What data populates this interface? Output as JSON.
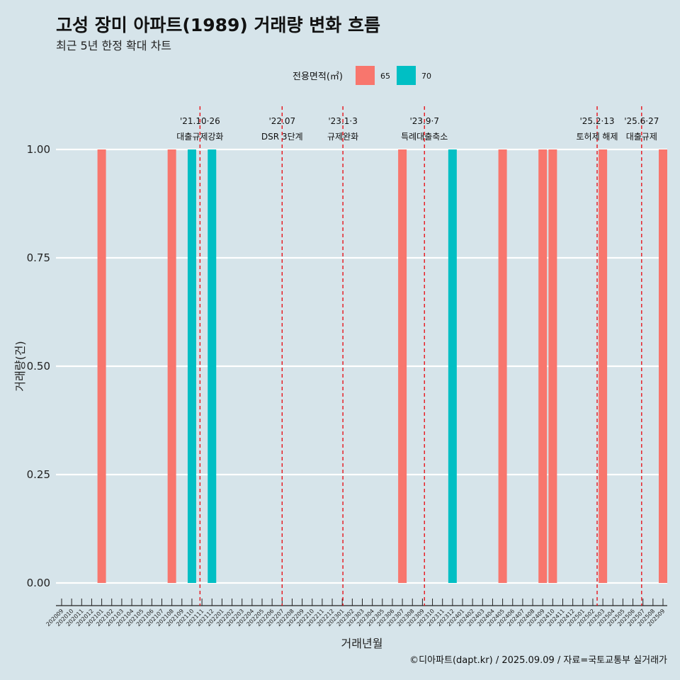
{
  "title": "고성 장미 아파트(1989) 거래량 변화 흐름",
  "subtitle": "최근 5년 한정 확대 차트",
  "caption": "©디아파트(dapt.kr) / 2025.09.09 / 자료=국토교통부 실거래가",
  "chart_data": {
    "type": "bar",
    "xlabel": "거래년월",
    "ylabel": "거래량(건)",
    "ylim": [
      0,
      1
    ],
    "yticks": [
      "0.00",
      "0.25",
      "0.50",
      "0.75",
      "1.00"
    ],
    "grid": true,
    "legend": {
      "title": "전용면적(㎡)",
      "position": "top",
      "entries": [
        {
          "name": "65",
          "color": "#f8766d"
        },
        {
          "name": "70",
          "color": "#00bfc4"
        }
      ]
    },
    "categories": [
      "202009",
      "202010",
      "202011",
      "202012",
      "202101",
      "202102",
      "202103",
      "202104",
      "202105",
      "202106",
      "202107",
      "202108",
      "202109",
      "202110",
      "202111",
      "202112",
      "202201",
      "202202",
      "202203",
      "202204",
      "202205",
      "202206",
      "202207",
      "202208",
      "202209",
      "202210",
      "202211",
      "202212",
      "202301",
      "202302",
      "202303",
      "202304",
      "202305",
      "202306",
      "202307",
      "202308",
      "202309",
      "202310",
      "202311",
      "202312",
      "202401",
      "202402",
      "202403",
      "202404",
      "202405",
      "202406",
      "202407",
      "202408",
      "202409",
      "202410",
      "202411",
      "202412",
      "202501",
      "202502",
      "202503",
      "202504",
      "202505",
      "202506",
      "202507",
      "202508",
      "202509"
    ],
    "bars": [
      {
        "x": "202101",
        "area": "65",
        "value": 1
      },
      {
        "x": "202108",
        "area": "65",
        "value": 1
      },
      {
        "x": "202110",
        "area": "70",
        "value": 1
      },
      {
        "x": "202112",
        "area": "70",
        "value": 1
      },
      {
        "x": "202307",
        "area": "65",
        "value": 1
      },
      {
        "x": "202312",
        "area": "70",
        "value": 1
      },
      {
        "x": "202405",
        "area": "65",
        "value": 1
      },
      {
        "x": "202409",
        "area": "65",
        "value": 1
      },
      {
        "x": "202410",
        "area": "65",
        "value": 1
      },
      {
        "x": "202503",
        "area": "65",
        "value": 1
      },
      {
        "x": "202509",
        "area": "65",
        "value": 1
      }
    ],
    "events": [
      {
        "date": "2021-10-26",
        "line1": "'21.10·26",
        "line2": "대출규제강화"
      },
      {
        "date": "2022-07-01",
        "line1": "'22.07",
        "line2": "DSR 3단계"
      },
      {
        "date": "2023-01-03",
        "line1": "'23.1·3",
        "line2": "규제완화"
      },
      {
        "date": "2023-09-07",
        "line1": "'23.9·7",
        "line2": "특례대출축소"
      },
      {
        "date": "2025-02-13",
        "line1": "'25.2·13",
        "line2": "토허제 해제"
      },
      {
        "date": "2025-06-27",
        "line1": "'25.6·27",
        "line2": "대출규제"
      }
    ]
  }
}
